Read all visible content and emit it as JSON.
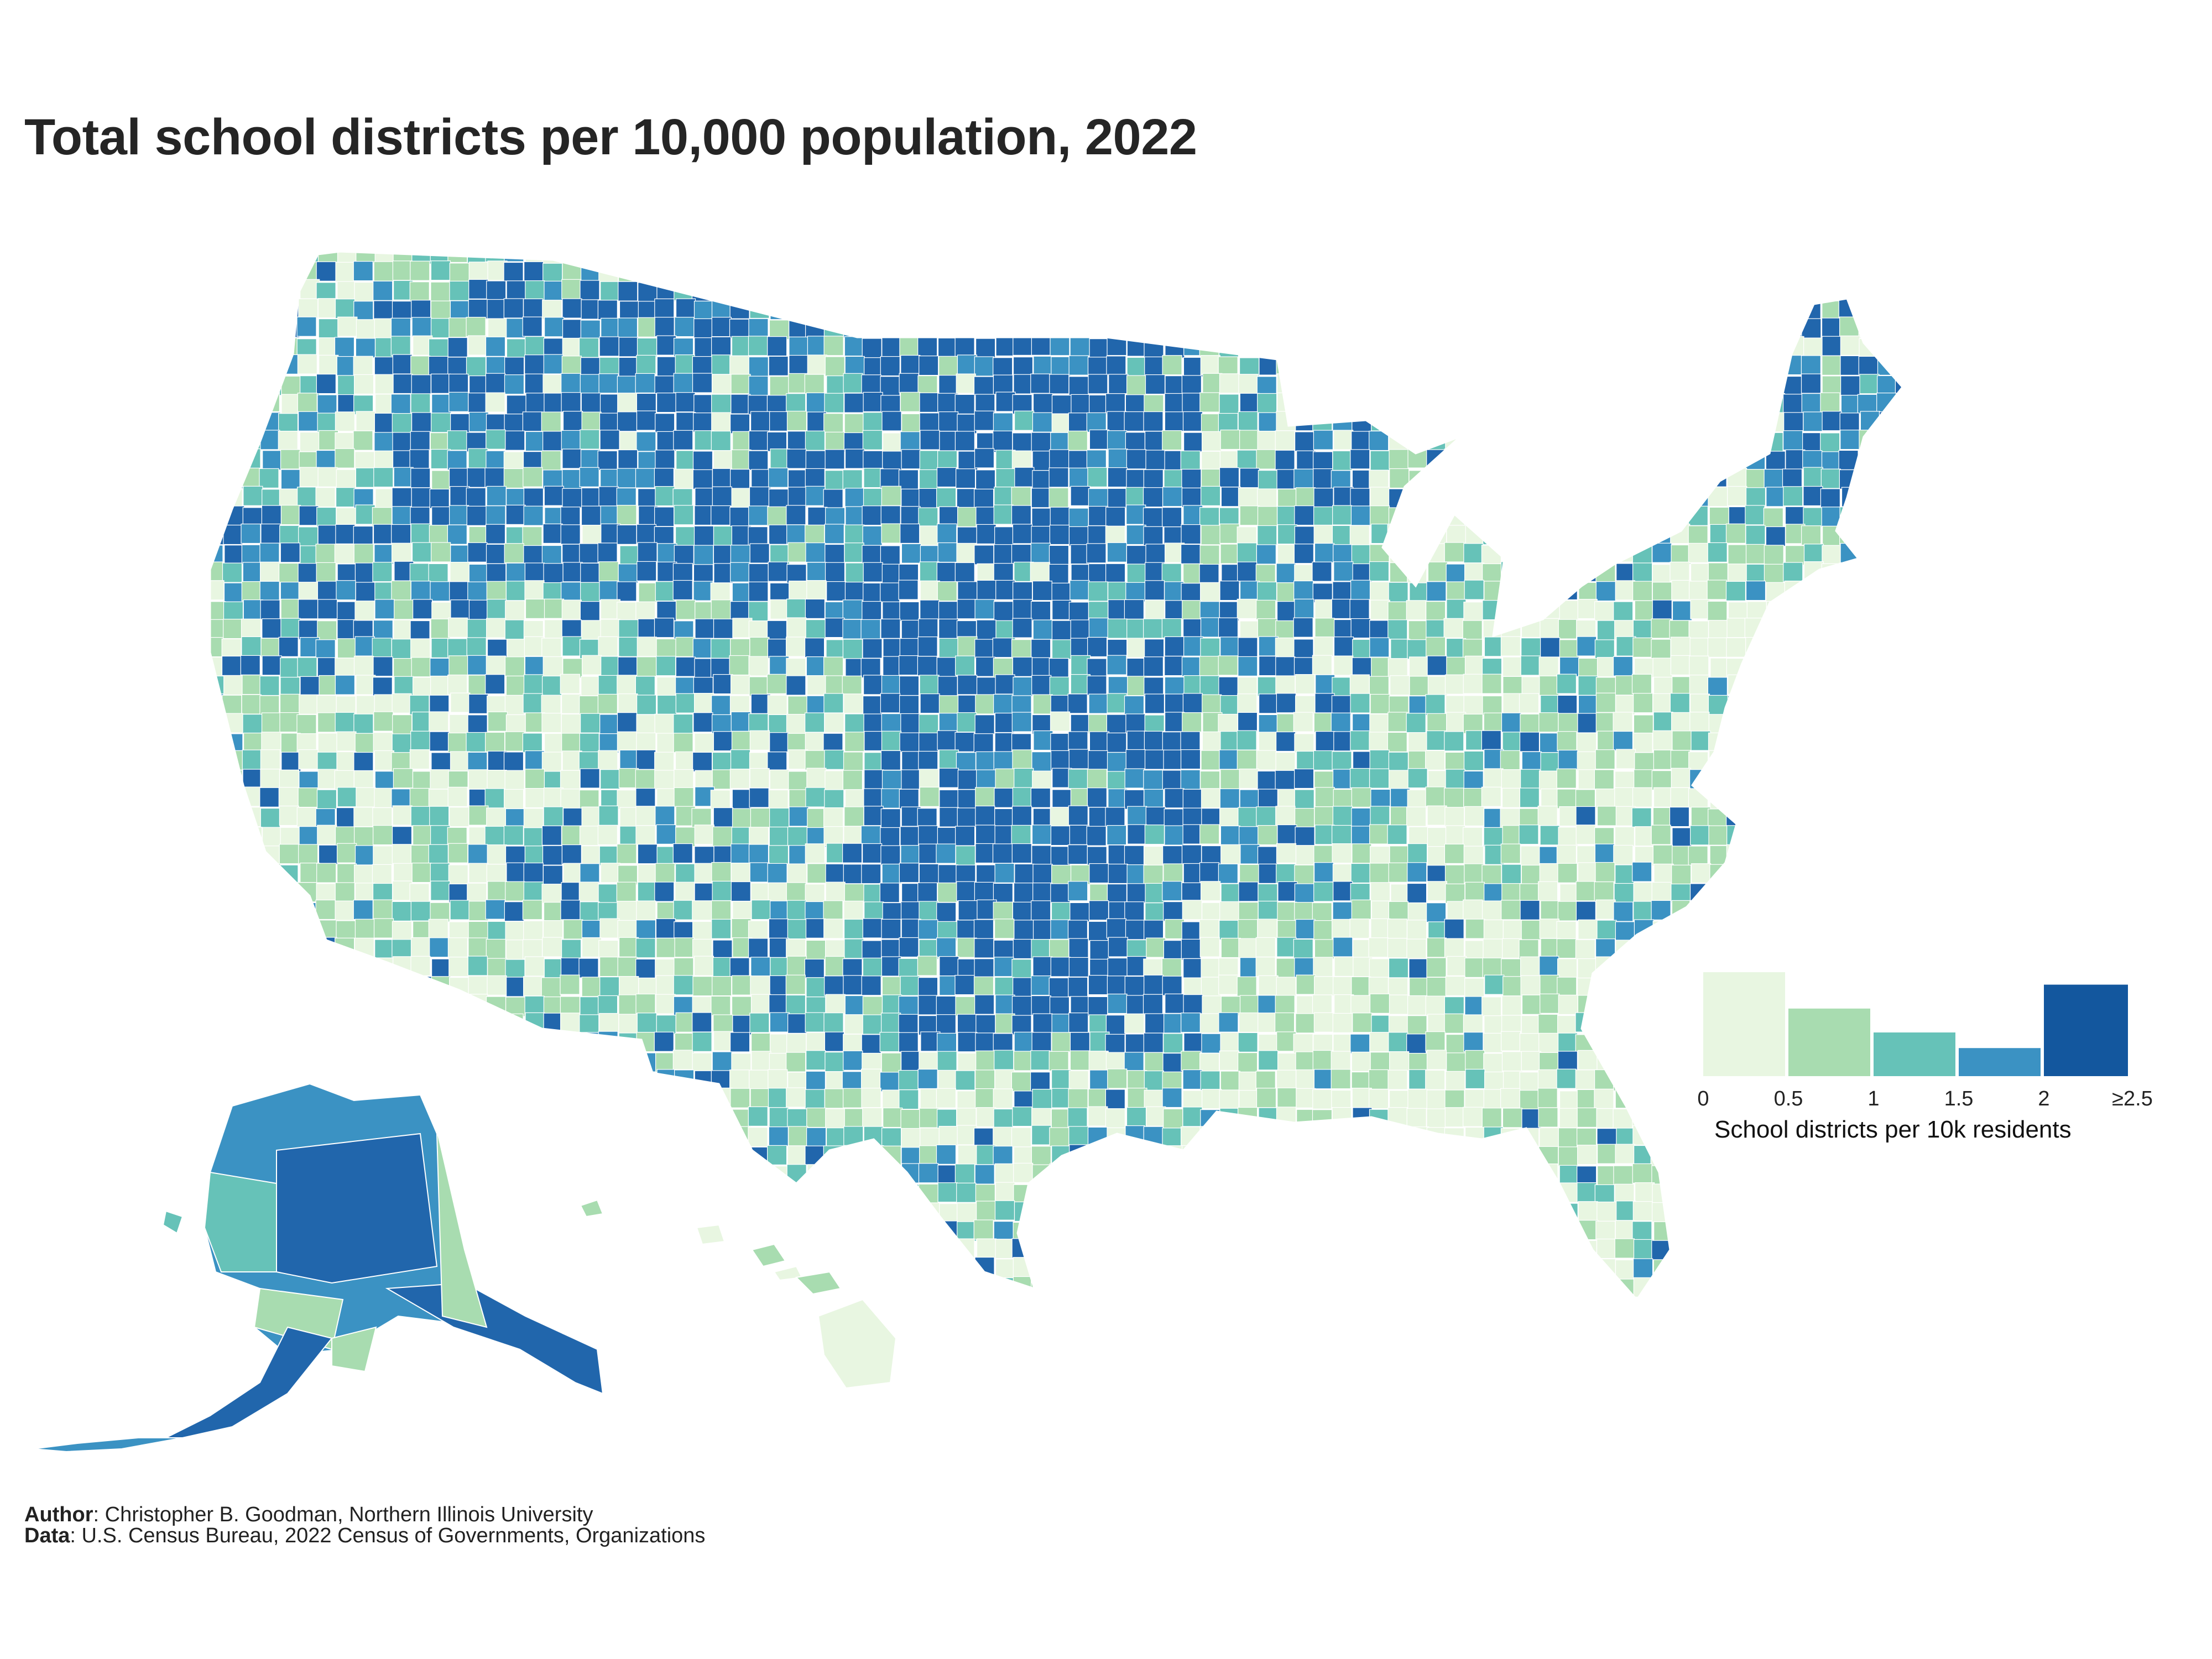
{
  "title": "Total school districts per 10,000 population, 2022",
  "colors": {
    "bin_0": "#e8f6e1",
    "bin_1": "#a8dcb0",
    "bin_2": "#66c2b8",
    "bin_3": "#3b92c3",
    "bin_4": "#13579e",
    "map_dark": "#2166ac",
    "border": "#ffffff"
  },
  "legend": {
    "title": "School districts per 10k residents",
    "ticks": [
      "0",
      "0.5",
      "1",
      "1.5",
      "2",
      "≥2.5"
    ],
    "bins": [
      {
        "range": "0–0.5",
        "relative_share": 1.0
      },
      {
        "range": "0.5–1",
        "relative_share": 0.65
      },
      {
        "range": "1–1.5",
        "relative_share": 0.42
      },
      {
        "range": "1.5–2",
        "relative_share": 0.27
      },
      {
        "range": "≥2.5",
        "relative_share": 0.88
      }
    ]
  },
  "footer": {
    "author_label": "Author",
    "author_text": ": Christopher B. Goodman, Northern Illinois University",
    "data_label": "Data",
    "data_text": ": U.S. Census Bureau, 2022 Census of Governments, Organizations"
  }
}
